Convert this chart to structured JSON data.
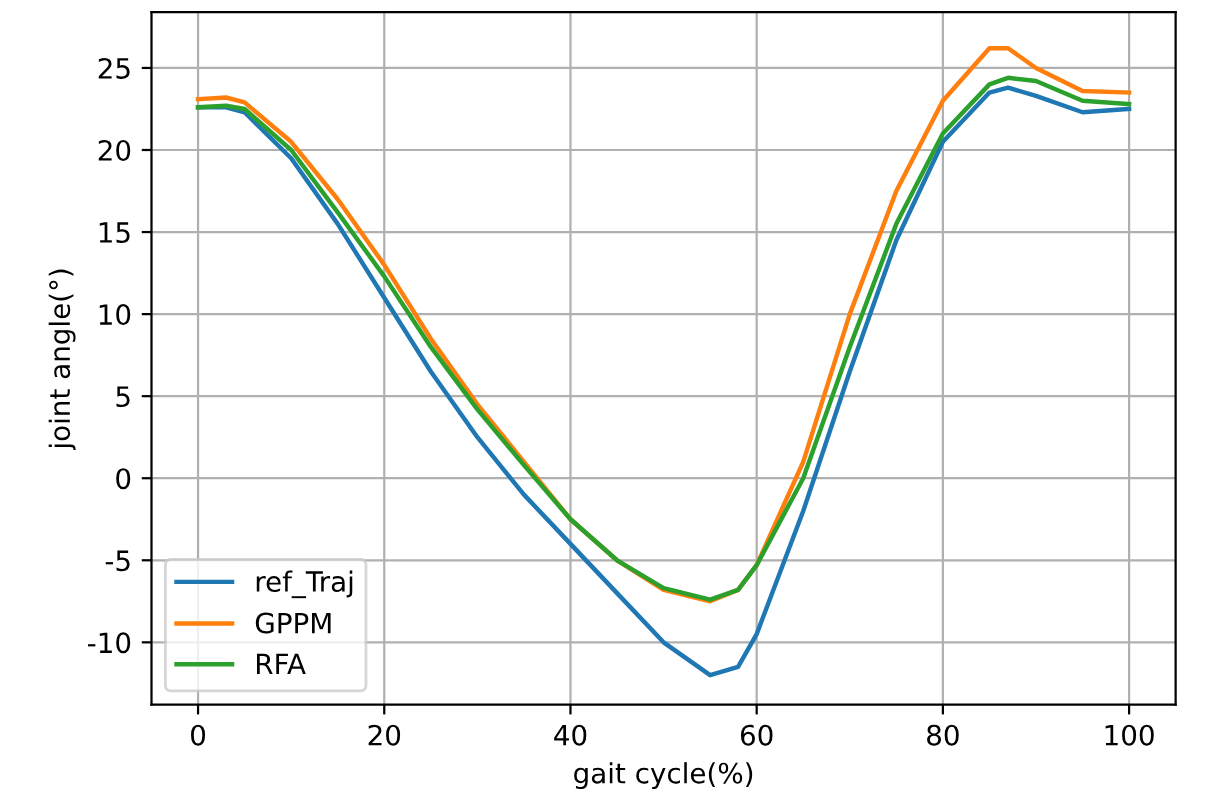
{
  "chart_data": {
    "type": "line",
    "xlabel": "gait cycle(%)",
    "ylabel": "joint angle(°)",
    "xlim": [
      -5,
      105
    ],
    "ylim": [
      -13.8,
      28.4
    ],
    "xticks": [
      0,
      20,
      40,
      60,
      80,
      100
    ],
    "yticks": [
      -10,
      -5,
      0,
      5,
      10,
      15,
      20,
      25
    ],
    "grid": true,
    "legend": "bottom left",
    "line_style": "solid",
    "x": [
      0,
      3,
      5,
      10,
      15,
      20,
      25,
      30,
      35,
      40,
      45,
      50,
      55,
      58,
      60,
      65,
      70,
      75,
      80,
      85,
      87,
      90,
      95,
      100
    ],
    "series": [
      {
        "name": "ref_Traj",
        "color": "#1f77b4",
        "values": [
          22.6,
          22.6,
          22.3,
          19.5,
          15.5,
          11,
          6.5,
          2.5,
          -1,
          -4,
          -7,
          -10,
          -12,
          -11.5,
          -9.5,
          -2,
          6.5,
          14.5,
          20.5,
          23.5,
          23.8,
          23.3,
          22.3,
          22.5
        ]
      },
      {
        "name": "GPPM",
        "color": "#ff7f0e",
        "values": [
          23.1,
          23.2,
          22.9,
          20.5,
          17,
          13,
          8.5,
          4.5,
          1,
          -2.5,
          -5,
          -6.8,
          -7.5,
          -6.8,
          -5.3,
          1,
          10,
          17.5,
          23,
          26.2,
          26.2,
          25,
          23.6,
          23.5
        ]
      },
      {
        "name": "RFA",
        "color": "#2ca02c",
        "values": [
          22.6,
          22.7,
          22.5,
          20,
          16.2,
          12.3,
          8,
          4.2,
          0.8,
          -2.5,
          -5,
          -6.7,
          -7.4,
          -6.8,
          -5.3,
          0,
          8,
          15.5,
          21,
          24,
          24.4,
          24.2,
          23,
          22.8
        ]
      }
    ]
  }
}
